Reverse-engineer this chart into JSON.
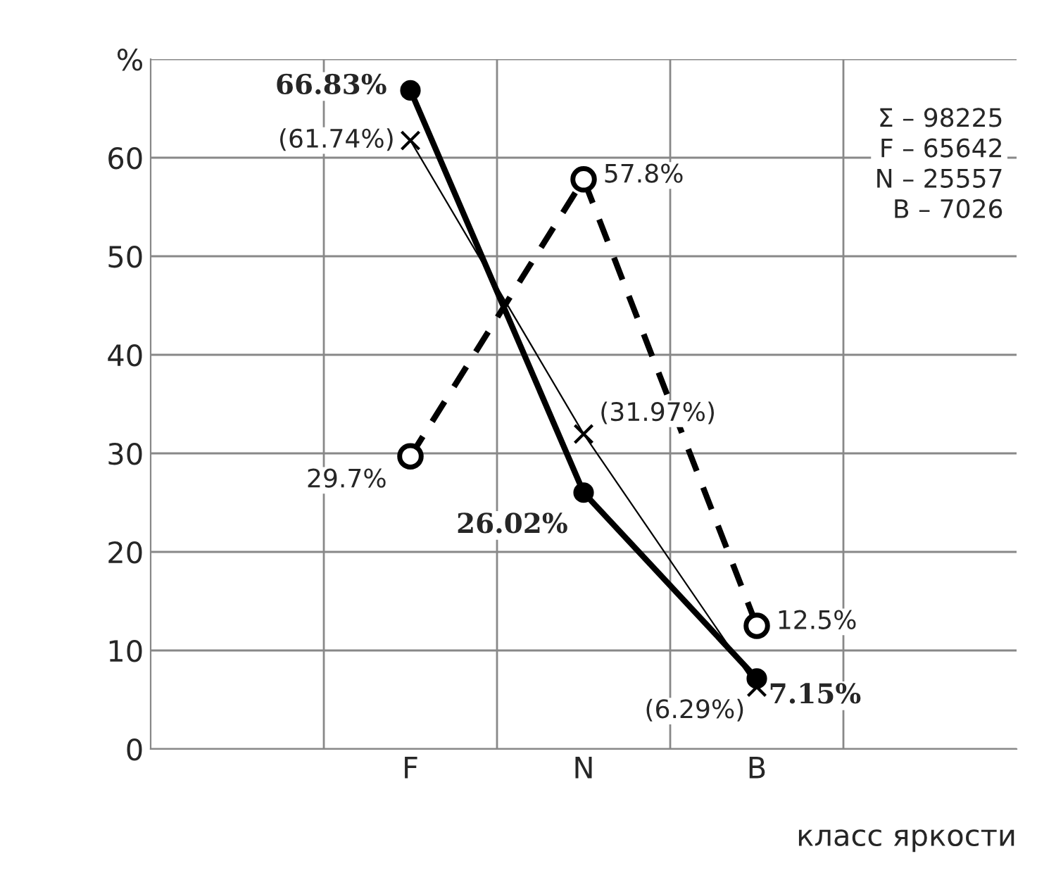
{
  "chart_data": {
    "type": "line",
    "categories": [
      null,
      "F",
      "N",
      "B",
      null
    ],
    "xlabel": "класс яркости",
    "ylim": [
      0,
      70
    ],
    "yticks": [
      0,
      10,
      20,
      30,
      40,
      50,
      60,
      {
        "value": 70,
        "label": "%"
      }
    ],
    "grid": true,
    "series": [
      {
        "color": "#000000",
        "marker": "circle",
        "line_style": "solid",
        "values": [
          null,
          66.83,
          26.02,
          7.15,
          null
        ],
        "value_labels": [
          null,
          "66.83%",
          "26.02%",
          "7.15%",
          null
        ]
      },
      {
        "color": "#000000",
        "marker": "circle",
        "line_style": "dashed",
        "values": [
          null,
          29.7,
          57.8,
          12.5,
          null
        ],
        "value_labels": [
          null,
          "29.7%",
          "57.8%",
          "12.5%",
          null
        ]
      },
      {
        "color": "#000000",
        "marker": "cross",
        "line_style": "solid",
        "values": [
          null,
          61.74,
          31.97,
          6.29,
          null
        ],
        "value_labels": [
          null,
          "(61.74%)",
          "(31.97%)",
          "(6.29%)",
          null
        ]
      }
    ],
    "annotations": [
      "Σ – 98225\nF – 65642\nN – 25557\nB – 7026"
    ]
  }
}
